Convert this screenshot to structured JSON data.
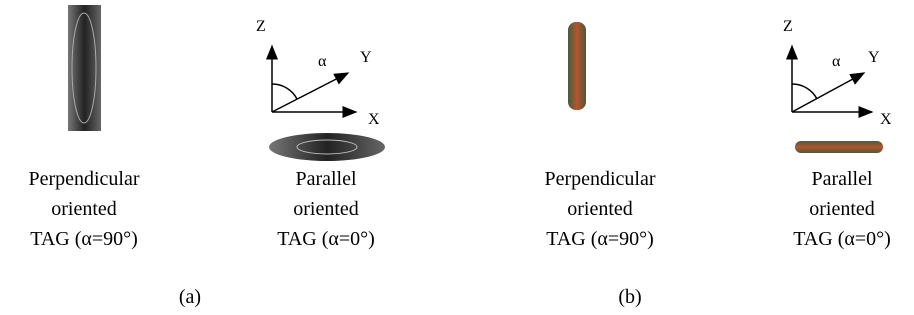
{
  "panels": [
    {
      "label": "(a)",
      "axes": {
        "z": "Z",
        "y": "Y",
        "x": "X",
        "angle": "α"
      },
      "items": [
        {
          "caption": [
            "Perpendicular",
            "oriented",
            "TAG (α=90°)"
          ]
        },
        {
          "caption": [
            "Parallel",
            "oriented",
            "TAG (α=0°)"
          ]
        }
      ]
    },
    {
      "label": "(b)",
      "axes": {
        "z": "Z",
        "y": "Y",
        "x": "X",
        "angle": "α"
      },
      "items": [
        {
          "caption": [
            "Perpendicular",
            "oriented",
            "TAG (α=90°)"
          ]
        },
        {
          "caption": [
            "Parallel",
            "oriented",
            "TAG (α=0°)"
          ]
        }
      ]
    }
  ]
}
